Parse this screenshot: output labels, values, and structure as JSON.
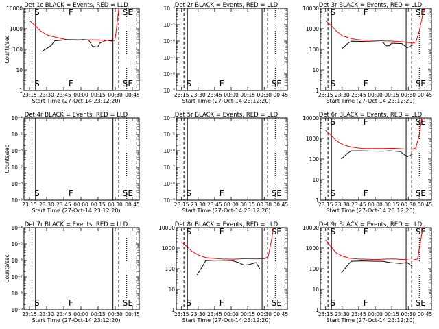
{
  "ticks_x": [
    "23:15",
    "23:30",
    "23:45",
    "00:00",
    "00:15",
    "00:30",
    "00:45"
  ],
  "colors": {
    "events": "#000000",
    "lld": "#ff0000",
    "background": "#ffffff"
  },
  "chart_data": [
    {
      "type": "line",
      "title": "Det 1c BLACK = Events, RED = LLD",
      "xlabel": "Start Time (27-Oct-14 23:12:20)",
      "ylabel": "Counts/sec",
      "ylim": [
        1,
        10000
      ],
      "yticks": [
        {
          "v": 1,
          "label": "1"
        },
        {
          "v": 10,
          "label": "10"
        },
        {
          "v": 100,
          "label": "100"
        },
        {
          "v": 1000,
          "label": "1000"
        },
        {
          "v": 10000,
          "label": "10000"
        }
      ],
      "has_data": true,
      "markers": [
        {
          "label": "S",
          "x": -0.05
        },
        {
          "label": "F",
          "x": 0.9
        },
        {
          "label": "SE",
          "x": 2.4
        }
      ],
      "series": [
        {
          "color": "#ff0000",
          "points": [
            [
              -0.15,
              2500
            ],
            [
              0.0,
              1500
            ],
            [
              0.15,
              800
            ],
            [
              0.35,
              500
            ],
            [
              0.55,
              400
            ],
            [
              0.75,
              330
            ],
            [
              0.9,
              300
            ],
            [
              1.1,
              300
            ],
            [
              1.3,
              290
            ],
            [
              1.5,
              290
            ],
            [
              1.7,
              290
            ],
            [
              1.9,
              280
            ],
            [
              2.1,
              280
            ],
            [
              2.22,
              260
            ],
            [
              2.25,
              600
            ],
            [
              2.3,
              3000
            ],
            [
              2.33,
              10000
            ]
          ]
        },
        {
          "color": "#000000",
          "points": [
            [
              0.2,
              80
            ],
            [
              0.45,
              150
            ],
            [
              0.55,
              260
            ],
            [
              0.85,
              290
            ],
            [
              1.2,
              280
            ],
            [
              1.35,
              300
            ],
            [
              1.5,
              280
            ],
            [
              1.6,
              140
            ],
            [
              1.75,
              130
            ],
            [
              1.8,
              200
            ],
            [
              2.0,
              280
            ],
            [
              2.15,
              250
            ]
          ]
        }
      ]
    },
    {
      "type": "line",
      "title": "Det 2r BLACK = Events, RED = LLD",
      "xlabel": "Start Time (27-Oct-14 23:12:20)",
      "ylabel": "",
      "ylim": [
        1e-09,
        0.0001
      ],
      "yticks": [
        {
          "v": 1e-09,
          "label": "10⁻⁹"
        },
        {
          "v": 1e-08,
          "label": "10⁻⁸"
        },
        {
          "v": 1e-07,
          "label": "10⁻⁷"
        },
        {
          "v": 1e-06,
          "label": "10⁻⁶"
        },
        {
          "v": 1e-05,
          "label": "10⁻⁵"
        },
        {
          "v": 0.0001,
          "label": "10⁻⁴"
        }
      ],
      "has_data": false,
      "markers": [
        {
          "label": "S",
          "x": -0.05
        },
        {
          "label": "F",
          "x": 0.9
        },
        {
          "label": "SE",
          "x": 2.4
        }
      ],
      "series": []
    },
    {
      "type": "line",
      "title": "Det 3r BLACK = Events, RED = LLD",
      "xlabel": "Start Time (27-Oct-14 23:12:20)",
      "ylabel": "",
      "ylim": [
        1,
        10000
      ],
      "yticks": [
        {
          "v": 1,
          "label": "1"
        },
        {
          "v": 10,
          "label": "10"
        },
        {
          "v": 100,
          "label": "100"
        },
        {
          "v": 1000,
          "label": "1000"
        },
        {
          "v": 10000,
          "label": "10000"
        }
      ],
      "has_data": true,
      "markers": [
        {
          "label": "S",
          "x": -0.05
        },
        {
          "label": "F",
          "x": 0.9
        },
        {
          "label": "SE",
          "x": 2.4
        }
      ],
      "series": [
        {
          "color": "#ff0000",
          "points": [
            [
              -0.15,
              2500
            ],
            [
              0.0,
              1500
            ],
            [
              0.15,
              800
            ],
            [
              0.35,
              450
            ],
            [
              0.55,
              350
            ],
            [
              0.75,
              300
            ],
            [
              0.95,
              280
            ],
            [
              1.2,
              270
            ],
            [
              1.5,
              260
            ],
            [
              1.8,
              250
            ],
            [
              2.1,
              230
            ],
            [
              2.35,
              200
            ],
            [
              2.45,
              220
            ],
            [
              2.55,
              800
            ],
            [
              2.65,
              5000
            ],
            [
              2.7,
              10000
            ]
          ]
        },
        {
          "color": "#000000",
          "points": [
            [
              0.3,
              100
            ],
            [
              0.5,
              200
            ],
            [
              0.6,
              250
            ],
            [
              0.9,
              240
            ],
            [
              1.3,
              230
            ],
            [
              1.5,
              220
            ],
            [
              1.6,
              150
            ],
            [
              1.7,
              150
            ],
            [
              1.75,
              200
            ],
            [
              2.05,
              190
            ],
            [
              2.2,
              120
            ],
            [
              2.35,
              160
            ]
          ]
        }
      ]
    },
    {
      "type": "line",
      "title": "Det 4r BLACK = Events, RED = LLD",
      "xlabel": "Start Time (27-Oct-14 23:12:20)",
      "ylabel": "Counts/sec",
      "ylim": [
        1e-09,
        0.0001
      ],
      "yticks": [
        {
          "v": 1e-09,
          "label": "10⁻⁹"
        },
        {
          "v": 1e-08,
          "label": "10⁻⁸"
        },
        {
          "v": 1e-07,
          "label": "10⁻⁷"
        },
        {
          "v": 1e-06,
          "label": "10⁻⁶"
        },
        {
          "v": 1e-05,
          "label": "10⁻⁵"
        },
        {
          "v": 0.0001,
          "label": "10⁻⁴"
        }
      ],
      "has_data": false,
      "markers": [
        {
          "label": "S",
          "x": -0.05
        },
        {
          "label": "F",
          "x": 0.9
        },
        {
          "label": "SE",
          "x": 2.4
        }
      ],
      "series": []
    },
    {
      "type": "line",
      "title": "Det 5r BLACK = Events, RED = LLD",
      "xlabel": "Start Time (27-Oct-14 23:12:20)",
      "ylabel": "",
      "ylim": [
        1e-09,
        0.0001
      ],
      "yticks": [
        {
          "v": 1e-09,
          "label": "10⁻⁹"
        },
        {
          "v": 1e-08,
          "label": "10⁻⁸"
        },
        {
          "v": 1e-07,
          "label": "10⁻⁷"
        },
        {
          "v": 1e-06,
          "label": "10⁻⁶"
        },
        {
          "v": 1e-05,
          "label": "10⁻⁵"
        },
        {
          "v": 0.0001,
          "label": "10⁻⁴"
        }
      ],
      "has_data": false,
      "markers": [
        {
          "label": "S",
          "x": -0.05
        },
        {
          "label": "F",
          "x": 0.9
        },
        {
          "label": "SE",
          "x": 2.4
        }
      ],
      "series": []
    },
    {
      "type": "line",
      "title": "Det 6r BLACK = Events, RED = LLD",
      "xlabel": "Start Time (27-Oct-14 23:12:20)",
      "ylabel": "",
      "ylim": [
        1,
        10000
      ],
      "yticks": [
        {
          "v": 1,
          "label": "1"
        },
        {
          "v": 10,
          "label": "10"
        },
        {
          "v": 100,
          "label": "100"
        },
        {
          "v": 1000,
          "label": "1000"
        },
        {
          "v": 10000,
          "label": "10000"
        }
      ],
      "has_data": true,
      "markers": [
        {
          "label": "S",
          "x": -0.05
        },
        {
          "label": "F",
          "x": 0.9
        },
        {
          "label": "SE",
          "x": 2.4
        }
      ],
      "series": [
        {
          "color": "#ff0000",
          "points": [
            [
              -0.15,
              2500
            ],
            [
              0.0,
              1500
            ],
            [
              0.15,
              800
            ],
            [
              0.35,
              500
            ],
            [
              0.55,
              400
            ],
            [
              0.75,
              350
            ],
            [
              0.95,
              320
            ],
            [
              1.2,
              320
            ],
            [
              1.5,
              320
            ],
            [
              1.8,
              330
            ],
            [
              2.1,
              310
            ],
            [
              2.35,
              300
            ],
            [
              2.45,
              350
            ],
            [
              2.55,
              1500
            ],
            [
              2.62,
              10000
            ]
          ]
        },
        {
          "color": "#000000",
          "points": [
            [
              0.3,
              100
            ],
            [
              0.5,
              200
            ],
            [
              0.6,
              250
            ],
            [
              0.9,
              250
            ],
            [
              1.3,
              240
            ],
            [
              1.5,
              240
            ],
            [
              1.7,
              250
            ],
            [
              2.0,
              230
            ],
            [
              2.2,
              130
            ],
            [
              2.35,
              170
            ]
          ]
        }
      ]
    },
    {
      "type": "line",
      "title": "Det 7r BLACK = Events, RED = LLD",
      "xlabel": "Start Time (27-Oct-14 23:12:20)",
      "ylabel": "Counts/sec",
      "ylim": [
        1e-09,
        0.0001
      ],
      "yticks": [
        {
          "v": 1e-09,
          "label": "10⁻⁹"
        },
        {
          "v": 1e-08,
          "label": "10⁻⁸"
        },
        {
          "v": 1e-07,
          "label": "10⁻⁷"
        },
        {
          "v": 1e-06,
          "label": "10⁻⁶"
        },
        {
          "v": 1e-05,
          "label": "10⁻⁵"
        },
        {
          "v": 0.0001,
          "label": "10⁻⁴"
        }
      ],
      "has_data": false,
      "markers": [
        {
          "label": "S",
          "x": -0.05
        },
        {
          "label": "F",
          "x": 0.9
        },
        {
          "label": "SE",
          "x": 2.4
        }
      ],
      "series": []
    },
    {
      "type": "line",
      "title": "Det 8r BLACK = Events, RED = LLD",
      "xlabel": "Start Time (27-Oct-14 23:12:20)",
      "ylabel": "",
      "ylim": [
        1,
        10000
      ],
      "yticks": [
        {
          "v": 1,
          "label": "1"
        },
        {
          "v": 10,
          "label": "10"
        },
        {
          "v": 100,
          "label": "100"
        },
        {
          "v": 1000,
          "label": "1000"
        },
        {
          "v": 10000,
          "label": "10000"
        }
      ],
      "has_data": true,
      "markers": [
        {
          "label": "S",
          "x": -0.05
        },
        {
          "label": "F",
          "x": 0.9
        },
        {
          "label": "SE",
          "x": 2.4
        }
      ],
      "series": [
        {
          "color": "#ff0000",
          "points": [
            [
              -0.15,
              2000
            ],
            [
              0.0,
              1200
            ],
            [
              0.15,
              700
            ],
            [
              0.35,
              450
            ],
            [
              0.55,
              350
            ],
            [
              0.75,
              320
            ],
            [
              1.0,
              300
            ],
            [
              1.3,
              290
            ],
            [
              1.5,
              300
            ],
            [
              1.8,
              310
            ],
            [
              2.0,
              300
            ],
            [
              2.25,
              310
            ],
            [
              2.35,
              400
            ],
            [
              2.45,
              3000
            ],
            [
              2.5,
              10000
            ]
          ]
        },
        {
          "color": "#000000",
          "points": [
            [
              0.3,
              50
            ],
            [
              0.45,
              130
            ],
            [
              0.55,
              250
            ],
            [
              0.9,
              260
            ],
            [
              1.3,
              250
            ],
            [
              1.5,
              200
            ],
            [
              1.65,
              150
            ],
            [
              1.8,
              160
            ],
            [
              2.0,
              200
            ],
            [
              2.1,
              100
            ]
          ]
        }
      ]
    },
    {
      "type": "line",
      "title": "Det 9r BLACK = Events, RED = LLD",
      "xlabel": "Start Time (27-Oct-14 23:12:20)",
      "ylabel": "",
      "ylim": [
        1,
        10000
      ],
      "yticks": [
        {
          "v": 1,
          "label": "1"
        },
        {
          "v": 10,
          "label": "10"
        },
        {
          "v": 100,
          "label": "100"
        },
        {
          "v": 1000,
          "label": "1000"
        },
        {
          "v": 10000,
          "label": "10000"
        }
      ],
      "has_data": true,
      "markers": [
        {
          "label": "S",
          "x": -0.05
        },
        {
          "label": "F",
          "x": 0.9
        },
        {
          "label": "SE",
          "x": 2.4
        }
      ],
      "series": [
        {
          "color": "#ff0000",
          "points": [
            [
              -0.15,
              2500
            ],
            [
              0.0,
              1200
            ],
            [
              0.15,
              600
            ],
            [
              0.35,
              400
            ],
            [
              0.55,
              320
            ],
            [
              0.75,
              300
            ],
            [
              1.0,
              290
            ],
            [
              1.3,
              280
            ],
            [
              1.5,
              290
            ],
            [
              1.8,
              300
            ],
            [
              2.1,
              280
            ],
            [
              2.35,
              260
            ],
            [
              2.5,
              300
            ],
            [
              2.6,
              3000
            ],
            [
              2.65,
              10000
            ]
          ]
        },
        {
          "color": "#000000",
          "points": [
            [
              0.3,
              60
            ],
            [
              0.5,
              160
            ],
            [
              0.6,
              230
            ],
            [
              0.9,
              240
            ],
            [
              1.3,
              230
            ],
            [
              1.5,
              230
            ],
            [
              1.7,
              200
            ],
            [
              2.0,
              180
            ],
            [
              2.2,
              200
            ],
            [
              2.35,
              130
            ]
          ]
        }
      ]
    }
  ]
}
